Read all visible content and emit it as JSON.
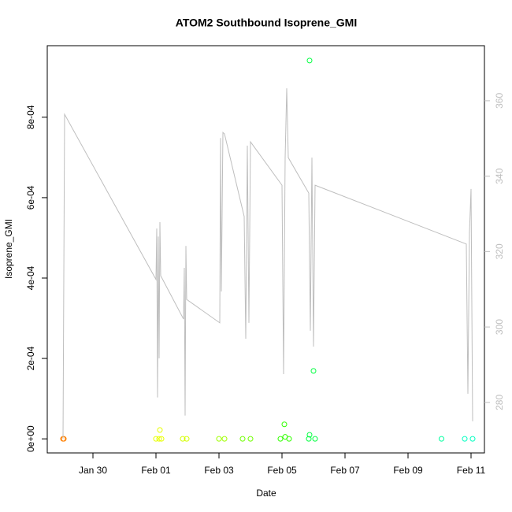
{
  "chart_data": {
    "type": "scatter",
    "title": "ATOM2 Southbound Isoprene_GMI",
    "xlabel": "Date",
    "ylabel": "Isoprene_GMI",
    "xlim": [
      "Jan 28 13:12",
      "Feb 11 10:12"
    ],
    "xticks": [
      "Jan 30",
      "Feb 01",
      "Feb 03",
      "Feb 05",
      "Feb 07",
      "Feb 09",
      "Feb 11"
    ],
    "ylim": [
      -3.5e-05,
      0.000978
    ],
    "yticks": [
      {
        "value": 0,
        "label": "0e+00"
      },
      {
        "value": 0.0002,
        "label": "2e-04"
      },
      {
        "value": 0.0004,
        "label": "4e-04"
      },
      {
        "value": 0.0006,
        "label": "6e-04"
      },
      {
        "value": 0.0008,
        "label": "8e-04"
      }
    ],
    "y2lim": [
      266.6,
      374.6
    ],
    "y2ticks": [
      280,
      300,
      320,
      340,
      360
    ],
    "y2color": "#bebebe",
    "series": [
      {
        "x": [
          "Jan 29 01:12",
          "Jan 29 01:48",
          "Feb 01 00:00",
          "Feb 01 02:24",
          "Feb 01 04:12",
          "Feb 01 03:00",
          "Feb 01 20:24",
          "Feb 01 23:24",
          "Feb 03 00:00",
          "Feb 03 04:12",
          "Feb 03 18:00",
          "Feb 04 00:00",
          "Feb 04 22:48",
          "Feb 05 01:48",
          "Feb 05 02:24",
          "Feb 05 05:24",
          "Feb 05 20:24",
          "Feb 05 21:00",
          "Feb 05 21:00",
          "Feb 06 00:00",
          "Feb 06 01:12",
          "Feb 10 01:30",
          "Feb 10 19:12",
          "Feb 11 01:12"
        ],
        "values": [
          0,
          0,
          0,
          0,
          0,
          2.2e-05,
          0,
          0,
          0,
          0,
          0,
          0,
          0,
          3.6e-05,
          5e-06,
          0,
          0,
          0.000941,
          1e-05,
          0.000169,
          0,
          0,
          0,
          0
        ],
        "colors": [
          "#ff8000",
          "#ff8000",
          "#e8ff00",
          "#e8ff00",
          "#e8ff00",
          "#e8ff00",
          "#d4ff00",
          "#d4ff00",
          "#a0ff00",
          "#a0ff00",
          "#70ff00",
          "#70ff00",
          "#30ff00",
          "#30ff00",
          "#30ff00",
          "#30ff00",
          "#00ff40",
          "#00ff40",
          "#00ff40",
          "#00ff40",
          "#00ff40",
          "#00ffa0",
          "#00ffc0",
          "#00ffc0"
        ]
      },
      {
        "axis": "y2",
        "line": true,
        "color": "#bebebe",
        "x": [
          "Jan 29 01:12",
          "Jan 29 02:24",
          "Feb 01 00:00",
          "Feb 01 00:36",
          "Feb 01 01:12",
          "Feb 01 01:48",
          "Feb 01 02:24",
          "Feb 01 03:00",
          "Feb 01 03:36",
          "Feb 01 21:00",
          "Feb 01 21:36",
          "Feb 01 22:12",
          "Feb 01 22:48",
          "Feb 01 23:24",
          "Feb 03 00:36",
          "Feb 03 01:12",
          "Feb 03 01:48",
          "Feb 03 03:00",
          "Feb 03 04:12",
          "Feb 03 19:12",
          "Feb 03 20:24",
          "Feb 03 21:36",
          "Feb 03 22:48",
          "Feb 04 00:00",
          "Feb 05 00:00",
          "Feb 05 01:12",
          "Feb 05 02:24",
          "Feb 05 03:36",
          "Feb 05 04:48",
          "Feb 05 20:24",
          "Feb 05 21:36",
          "Feb 05 22:48",
          "Feb 06 00:00",
          "Feb 06 01:12",
          "Feb 10 20:24",
          "Feb 10 21:36",
          "Feb 10 22:48",
          "Feb 11 00:00",
          "Feb 11 01:12"
        ],
        "values": [
          270.4,
          356.4,
          312.6,
          326.1,
          281.3,
          324.0,
          291.7,
          327.8,
          313.6,
          302.1,
          315.7,
          276.5,
          321.5,
          307.3,
          301.1,
          350.1,
          309.4,
          351.6,
          351.2,
          329.3,
          296.9,
          348.1,
          301.1,
          349.1,
          337.6,
          287.5,
          344.9,
          363.3,
          344.9,
          335.5,
          299.0,
          344.9,
          294.8,
          337.6,
          322.0,
          282.3,
          325.1,
          336.6,
          275.0
        ]
      }
    ]
  }
}
